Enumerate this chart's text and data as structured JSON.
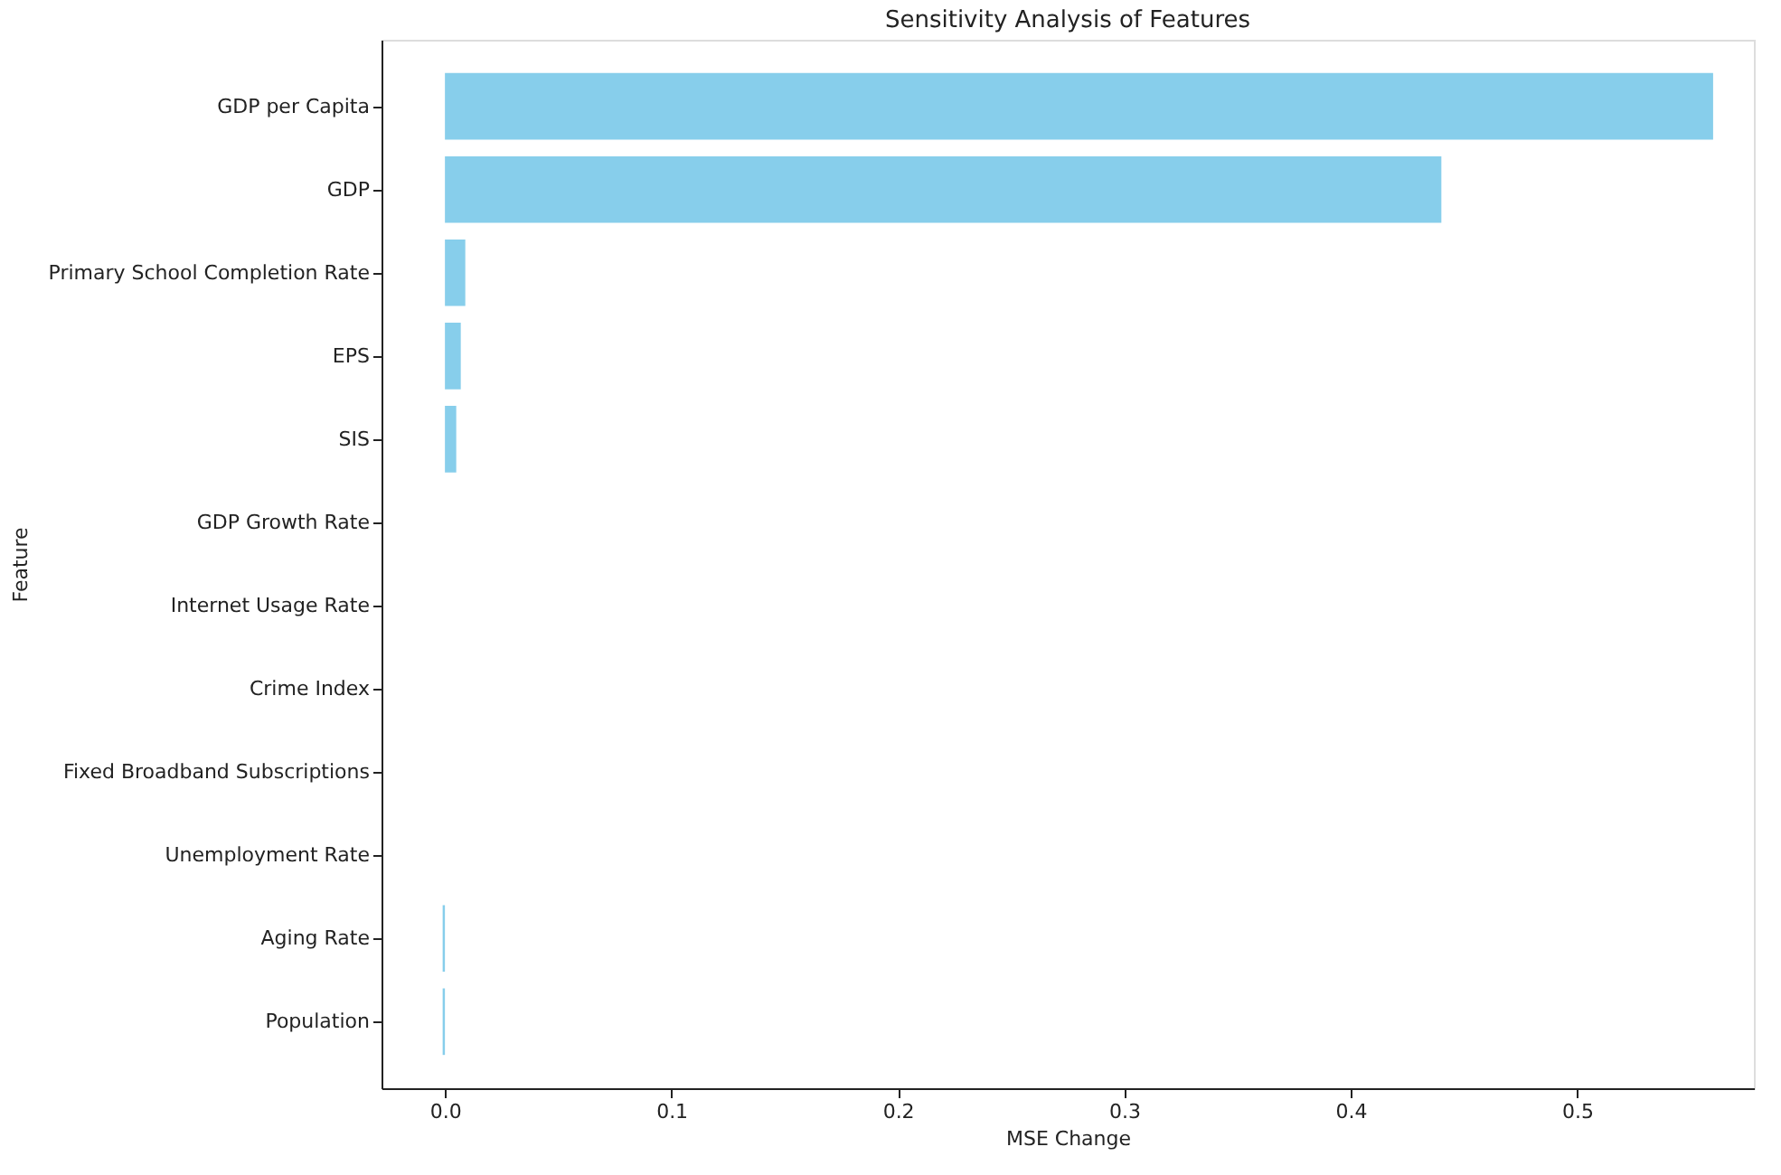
{
  "chart_data": {
    "type": "bar",
    "orientation": "horizontal",
    "title": "Sensitivity Analysis of Features",
    "xlabel": "MSE Change",
    "ylabel": "Feature",
    "categories": [
      "GDP per Capita",
      "GDP",
      "Primary School Completion Rate",
      "EPS",
      "SIS",
      "GDP Growth Rate",
      "Internet Usage Rate",
      "Crime Index",
      "Fixed Broadband Subscriptions",
      "Unemployment Rate",
      "Aging Rate",
      "Population"
    ],
    "values": [
      0.56,
      0.44,
      0.009,
      0.007,
      0.005,
      0,
      0,
      0,
      0,
      0,
      -0.001,
      -0.001
    ],
    "color": "#87ceeb",
    "xlim": [
      -0.028,
      0.578
    ],
    "xticks": [
      {
        "value": 0,
        "label": "0.0"
      },
      {
        "value": 0.1,
        "label": "0.1"
      },
      {
        "value": 0.2,
        "label": "0.2"
      },
      {
        "value": 0.3,
        "label": "0.3"
      },
      {
        "value": 0.4,
        "label": "0.4"
      },
      {
        "value": 0.5,
        "label": "0.5"
      }
    ],
    "grid": false
  }
}
